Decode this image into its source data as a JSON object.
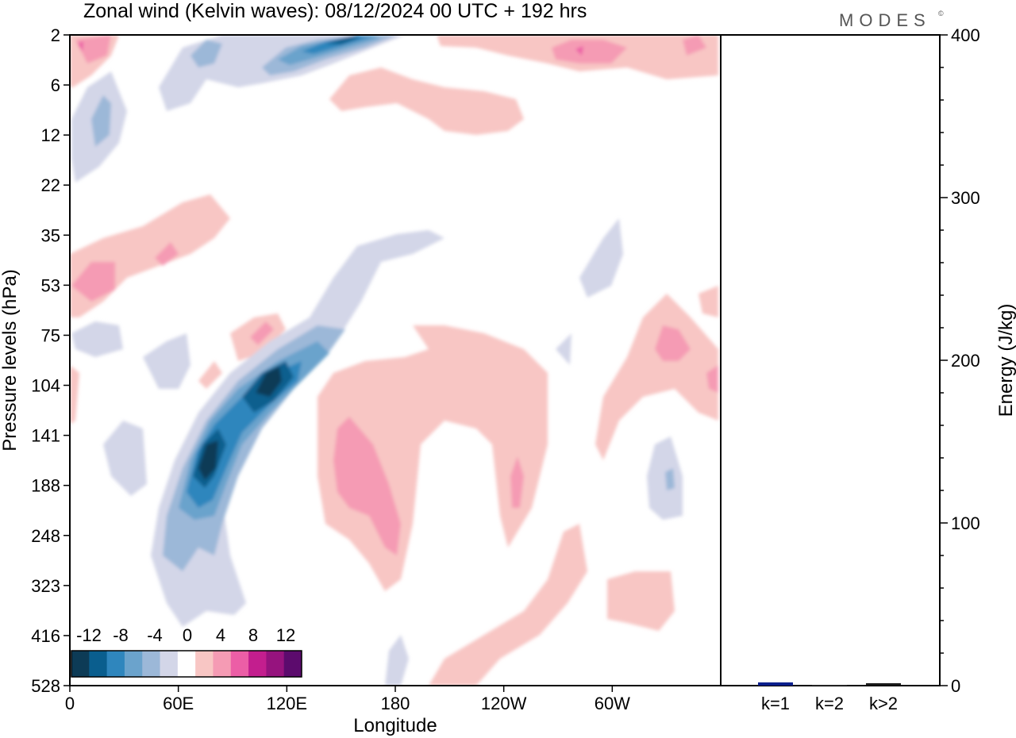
{
  "title": "Zonal wind (Kelvin waves):  08/12/2024  00 UTC  + 192 hrs",
  "brand": "MODES",
  "brand_mark": "©",
  "chart_data": [
    {
      "type": "heatmap",
      "xlabel": "Longitude",
      "ylabel": "Pressure levels (hPa)",
      "x_ticks": [
        "0",
        "60E",
        "120E",
        "180",
        "120W",
        "60W"
      ],
      "x_tick_values": [
        0,
        60,
        120,
        180,
        240,
        300
      ],
      "xlim": [
        0,
        360
      ],
      "y_ticks": [
        "2",
        "6",
        "12",
        "22",
        "35",
        "53",
        "75",
        "104",
        "141",
        "188",
        "248",
        "323",
        "416",
        "528"
      ],
      "colorbar": {
        "labels": [
          "-12",
          "-8",
          "-4",
          "0",
          "4",
          "8",
          "12"
        ],
        "levels": [
          -14,
          -12,
          -10,
          -8,
          -6,
          -4,
          -2,
          2,
          4,
          6,
          8,
          10,
          12,
          14
        ],
        "colors": [
          "#0d3b56",
          "#0a5e8e",
          "#2f86bd",
          "#6ba3cc",
          "#9cb8d8",
          "#d3d6e8",
          "#ffffff",
          "#f8c6c4",
          "#f59bb4",
          "#ec5ea6",
          "#c31e8e",
          "#96137e",
          "#5c0b6d"
        ]
      },
      "features": [
        {
          "sign": "negative",
          "lon": 75,
          "level": "141",
          "value": -13
        },
        {
          "sign": "negative",
          "lon": 105,
          "level": "104",
          "value": -14
        },
        {
          "sign": "negative",
          "lon": 135,
          "level": "2",
          "value": -10
        },
        {
          "sign": "positive",
          "lon": 160,
          "level": "188",
          "value": 7
        },
        {
          "sign": "positive",
          "lon": 280,
          "level": "2",
          "value": 7
        },
        {
          "sign": "positive",
          "lon": 25,
          "level": "53",
          "value": 6
        },
        {
          "sign": "positive",
          "lon": 330,
          "level": "75",
          "value": 6
        }
      ]
    },
    {
      "type": "bar",
      "categories": [
        "k=1",
        "k=2",
        "k>2"
      ],
      "values": [
        2.0,
        0.5,
        1.5
      ],
      "ylabel": "Energy (J/kg)",
      "ylim": [
        0,
        400
      ],
      "y_ticks": [
        "0",
        "100",
        "200",
        "300",
        "400"
      ],
      "y_tick_values": [
        0,
        100,
        200,
        300,
        400
      ],
      "bar_colors": [
        "#0a1f8c",
        "#3a3a3a",
        "#1a1a1a"
      ]
    }
  ]
}
